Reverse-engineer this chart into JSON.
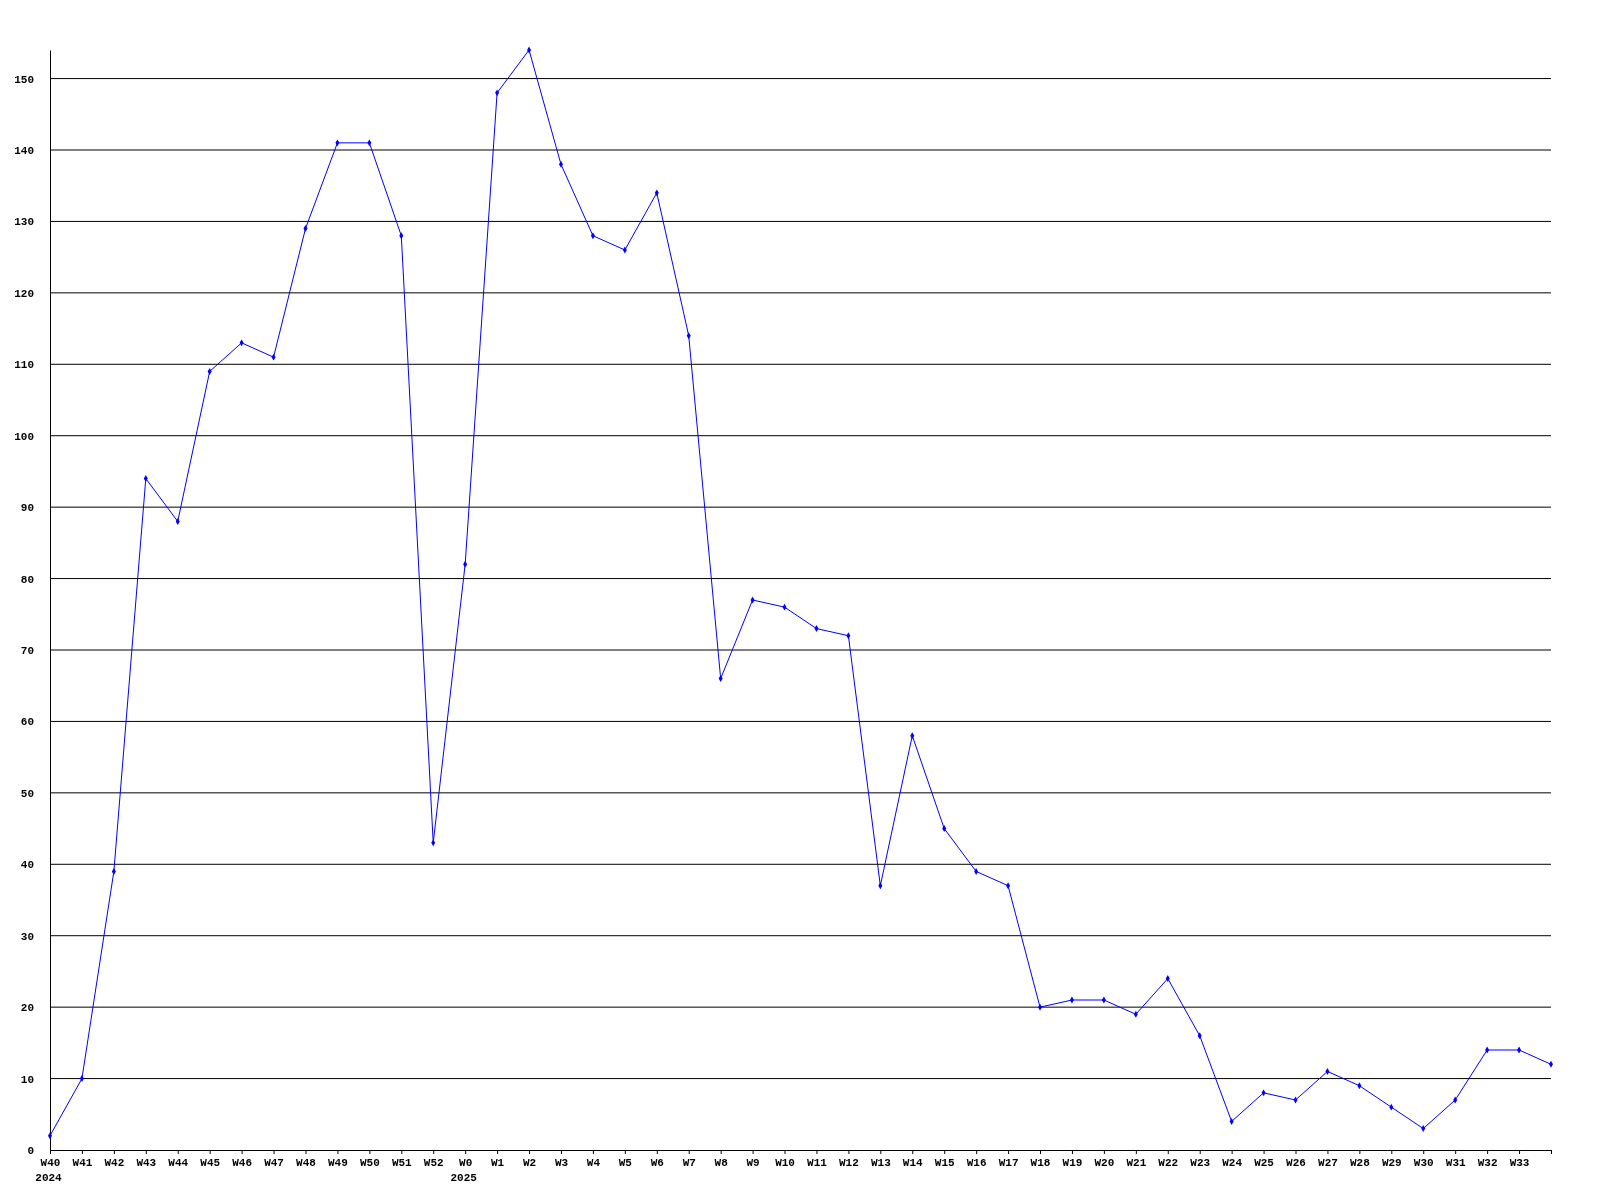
{
  "chart_data": {
    "type": "line",
    "categories": [
      "W40\n2024",
      "W41",
      "W42",
      "W43",
      "W44",
      "W45",
      "W46",
      "W47",
      "W48",
      "W49",
      "W50",
      "W51",
      "W52",
      "W0\n2025",
      "W1",
      "W2",
      "W3",
      "W4",
      "W5",
      "W6",
      "W7",
      "W8",
      "W9",
      "W10",
      "W11",
      "W12",
      "W13",
      "W14",
      "W15",
      "W16",
      "W17",
      "W18",
      "W19",
      "W20",
      "W21",
      "W22",
      "W23",
      "W24",
      "W25",
      "W26",
      "W27",
      "W28",
      "W29",
      "W30",
      "W31",
      "W32",
      "W33",
      null
    ],
    "series": [
      {
        "color": "#0000ff",
        "values": [
          2,
          10,
          39,
          94,
          88,
          109,
          113,
          111,
          129,
          141,
          141,
          128,
          43,
          82,
          148,
          154,
          138,
          128,
          126,
          134,
          114,
          66,
          77,
          76,
          73,
          72,
          37,
          58,
          45,
          39,
          37,
          20,
          21,
          21,
          19,
          24,
          16,
          4,
          8,
          7,
          11,
          9,
          6,
          3,
          7,
          14,
          14,
          12
        ]
      }
    ],
    "ylim": [
      0,
      154
    ],
    "yticks": [
      0,
      10,
      20,
      30,
      40,
      50,
      60,
      70,
      80,
      90,
      100,
      110,
      120,
      130,
      140,
      150
    ],
    "grid": "y",
    "marker": "diamond",
    "line_style": "solid"
  }
}
